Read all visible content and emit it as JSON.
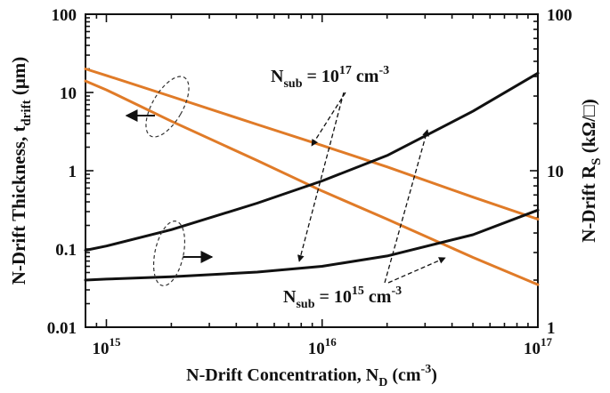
{
  "chart_data": {
    "type": "line",
    "xlabel": "N-Drift Concentration, N",
    "xlabel_sub": "D",
    "xlabel_unit": "(cm",
    "xlabel_unit_sup": "-3",
    "xlabel_close": ")",
    "ylabel_left": "N-Drift Thickness, t",
    "ylabel_left_sub": "drift",
    "ylabel_left_unit": "(μm)",
    "ylabel_right": "N-Drift R",
    "ylabel_right_sub": "S",
    "ylabel_right_unit": "(kΩ/□)",
    "x_scale": "log",
    "xlim": [
      800000000000000.0,
      1e+17
    ],
    "x_ticks": [
      {
        "value": 1000000000000000.0,
        "base": "10",
        "exp": "15"
      },
      {
        "value": 1e+16,
        "base": "10",
        "exp": "16"
      },
      {
        "value": 1e+17,
        "base": "10",
        "exp": "17"
      }
    ],
    "y_left": {
      "scale": "log",
      "lim": [
        0.01,
        100
      ],
      "ticks": [
        {
          "value": 0.01,
          "label": "0.01"
        },
        {
          "value": 0.1,
          "label": "0.1"
        },
        {
          "value": 1,
          "label": "1"
        },
        {
          "value": 10,
          "label": "10"
        },
        {
          "value": 100,
          "label": "100"
        }
      ]
    },
    "y_right": {
      "scale": "log",
      "lim": [
        1,
        100
      ],
      "ticks": [
        {
          "value": 1,
          "label": "1"
        },
        {
          "value": 10,
          "label": "10"
        },
        {
          "value": 100,
          "label": "100"
        }
      ]
    },
    "series": [
      {
        "axis": "left",
        "color": "#e07b28",
        "x": [
          800000000000000.0,
          1000000000000000.0,
          2000000000000000.0,
          5000000000000000.0,
          1e+16,
          2e+16,
          5e+16,
          1e+17
        ],
        "y": [
          20,
          16.5,
          8.9,
          3.9,
          2.1,
          1.12,
          0.46,
          0.24
        ]
      },
      {
        "axis": "left",
        "color": "#e07b28",
        "x": [
          800000000000000.0,
          1000000000000000.0,
          2000000000000000.0,
          5000000000000000.0,
          1e+16,
          2e+16,
          5e+16,
          1e+17
        ],
        "y": [
          14,
          10.8,
          4.3,
          1.35,
          0.55,
          0.24,
          0.078,
          0.035
        ]
      },
      {
        "axis": "right",
        "color": "#111111",
        "x": [
          800000000000000.0,
          1000000000000000.0,
          2000000000000000.0,
          5000000000000000.0,
          1e+16,
          2e+16,
          5e+16,
          1e+17
        ],
        "y": [
          3.1,
          3.3,
          4.2,
          6.2,
          8.6,
          12.5,
          24,
          42
        ]
      },
      {
        "axis": "right",
        "color": "#111111",
        "x": [
          800000000000000.0,
          1000000000000000.0,
          2000000000000000.0,
          5000000000000000.0,
          1e+16,
          2e+16,
          5e+16,
          1e+17
        ],
        "y": [
          2.0,
          2.03,
          2.1,
          2.25,
          2.45,
          2.85,
          3.9,
          5.6
        ]
      }
    ],
    "annotations": [
      {
        "text_main": "N",
        "text_sub": "sub",
        "text_eq": " = 10",
        "text_exp": "17",
        "text_unit": " cm",
        "text_unit_sup": "-3"
      },
      {
        "text_main": "N",
        "text_sub": "sub",
        "text_eq": " = 10",
        "text_exp": "15",
        "text_unit": " cm",
        "text_unit_sup": "-3"
      }
    ],
    "grid": false,
    "line_colors": {
      "orange": "#e07b28",
      "black": "#111111"
    }
  }
}
